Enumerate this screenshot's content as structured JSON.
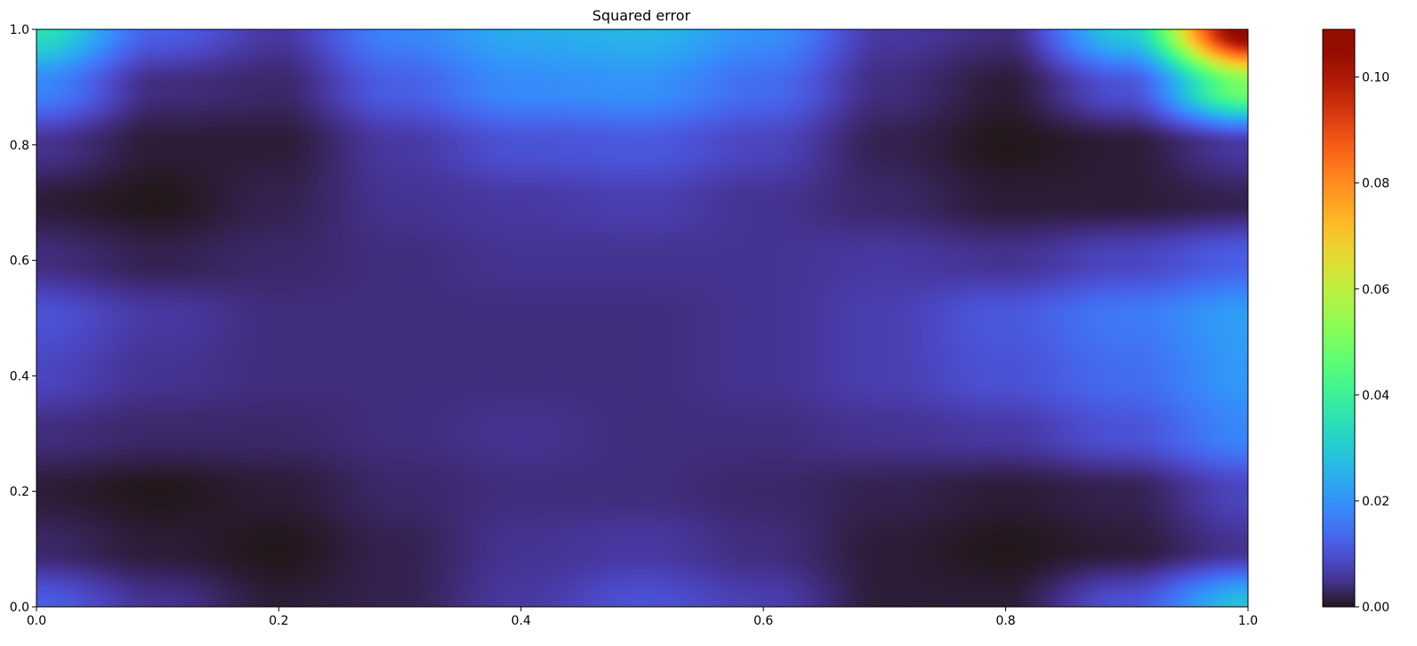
{
  "chart_data": {
    "type": "heatmap",
    "title": "Squared error",
    "xlabel": "",
    "ylabel": "",
    "xlim": [
      0,
      1
    ],
    "ylim": [
      0,
      1
    ],
    "grid": false,
    "colormap": "turbo",
    "x_ticks": [
      0.0,
      0.2,
      0.4,
      0.6,
      0.8,
      1.0
    ],
    "x_tick_labels": [
      "0.0",
      "0.2",
      "0.4",
      "0.6",
      "0.8",
      "1.0"
    ],
    "y_ticks": [
      0.0,
      0.2,
      0.4,
      0.6,
      0.8,
      1.0
    ],
    "y_tick_labels": [
      "0.0",
      "0.2",
      "0.4",
      "0.6",
      "0.8",
      "1.0"
    ],
    "colorbar": {
      "vmin": 0.0,
      "vmax": 0.109,
      "ticks": [
        0.0,
        0.02,
        0.04,
        0.06,
        0.08,
        0.1
      ],
      "tick_labels": [
        "0.00",
        "0.02",
        "0.04",
        "0.06",
        "0.08",
        "0.10"
      ]
    },
    "grid_x": [
      0.0,
      0.1,
      0.2,
      0.3,
      0.4,
      0.5,
      0.6,
      0.7,
      0.8,
      0.9,
      1.0
    ],
    "grid_y": [
      0.0,
      0.1,
      0.2,
      0.3,
      0.4,
      0.5,
      0.6,
      0.7,
      0.8,
      0.9,
      1.0
    ],
    "values": [
      [
        0.012,
        0.005,
        0.001,
        0.002,
        0.006,
        0.01,
        0.007,
        0.001,
        0.001,
        0.01,
        0.028
      ],
      [
        0.003,
        0.001,
        0.0,
        0.002,
        0.005,
        0.006,
        0.004,
        0.001,
        0.0,
        0.001,
        0.005
      ],
      [
        0.001,
        0.0,
        0.001,
        0.003,
        0.004,
        0.004,
        0.003,
        0.002,
        0.001,
        0.002,
        0.008
      ],
      [
        0.004,
        0.003,
        0.003,
        0.004,
        0.005,
        0.004,
        0.004,
        0.005,
        0.006,
        0.01,
        0.018
      ],
      [
        0.008,
        0.005,
        0.004,
        0.004,
        0.004,
        0.004,
        0.005,
        0.007,
        0.01,
        0.014,
        0.021
      ],
      [
        0.01,
        0.006,
        0.004,
        0.004,
        0.004,
        0.004,
        0.005,
        0.007,
        0.011,
        0.016,
        0.022
      ],
      [
        0.004,
        0.002,
        0.003,
        0.004,
        0.005,
        0.005,
        0.005,
        0.006,
        0.005,
        0.008,
        0.012
      ],
      [
        0.001,
        0.0,
        0.002,
        0.005,
        0.006,
        0.007,
        0.005,
        0.003,
        0.001,
        0.001,
        0.002
      ],
      [
        0.005,
        0.001,
        0.001,
        0.006,
        0.01,
        0.011,
        0.008,
        0.002,
        0.0,
        0.001,
        0.006
      ],
      [
        0.018,
        0.004,
        0.003,
        0.012,
        0.019,
        0.02,
        0.014,
        0.004,
        0.001,
        0.01,
        0.05
      ],
      [
        0.035,
        0.012,
        0.006,
        0.018,
        0.024,
        0.026,
        0.02,
        0.006,
        0.004,
        0.03,
        0.109
      ]
    ]
  }
}
